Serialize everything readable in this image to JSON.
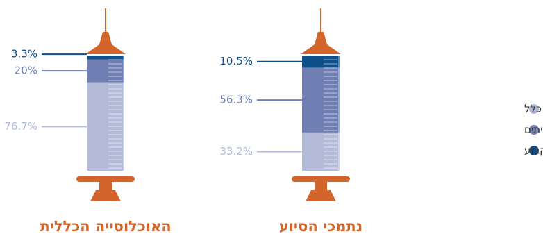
{
  "chart_data": {
    "type": "bar",
    "stacked": true,
    "categories": [
      "האוכלוסייה הכללית",
      "נתמכי הסיוע"
    ],
    "series": [
      {
        "name": "לא קרה כלל",
        "color": "#b3bbd9",
        "values": [
          76.7,
          33.2
        ],
        "value_labels": [
          "76.7%",
          "33.2%"
        ]
      },
      {
        "name": "קרה לעיתים",
        "color": "#6f7fb3",
        "values": [
          20,
          56.3
        ],
        "value_labels": [
          "20%",
          "56.3%"
        ]
      },
      {
        "name": "קרה באופן קבוע",
        "color": "#0f4f8b",
        "values": [
          3.3,
          10.5
        ],
        "value_labels": [
          "3.3%",
          "10.5%"
        ]
      }
    ],
    "legend": "right"
  }
}
